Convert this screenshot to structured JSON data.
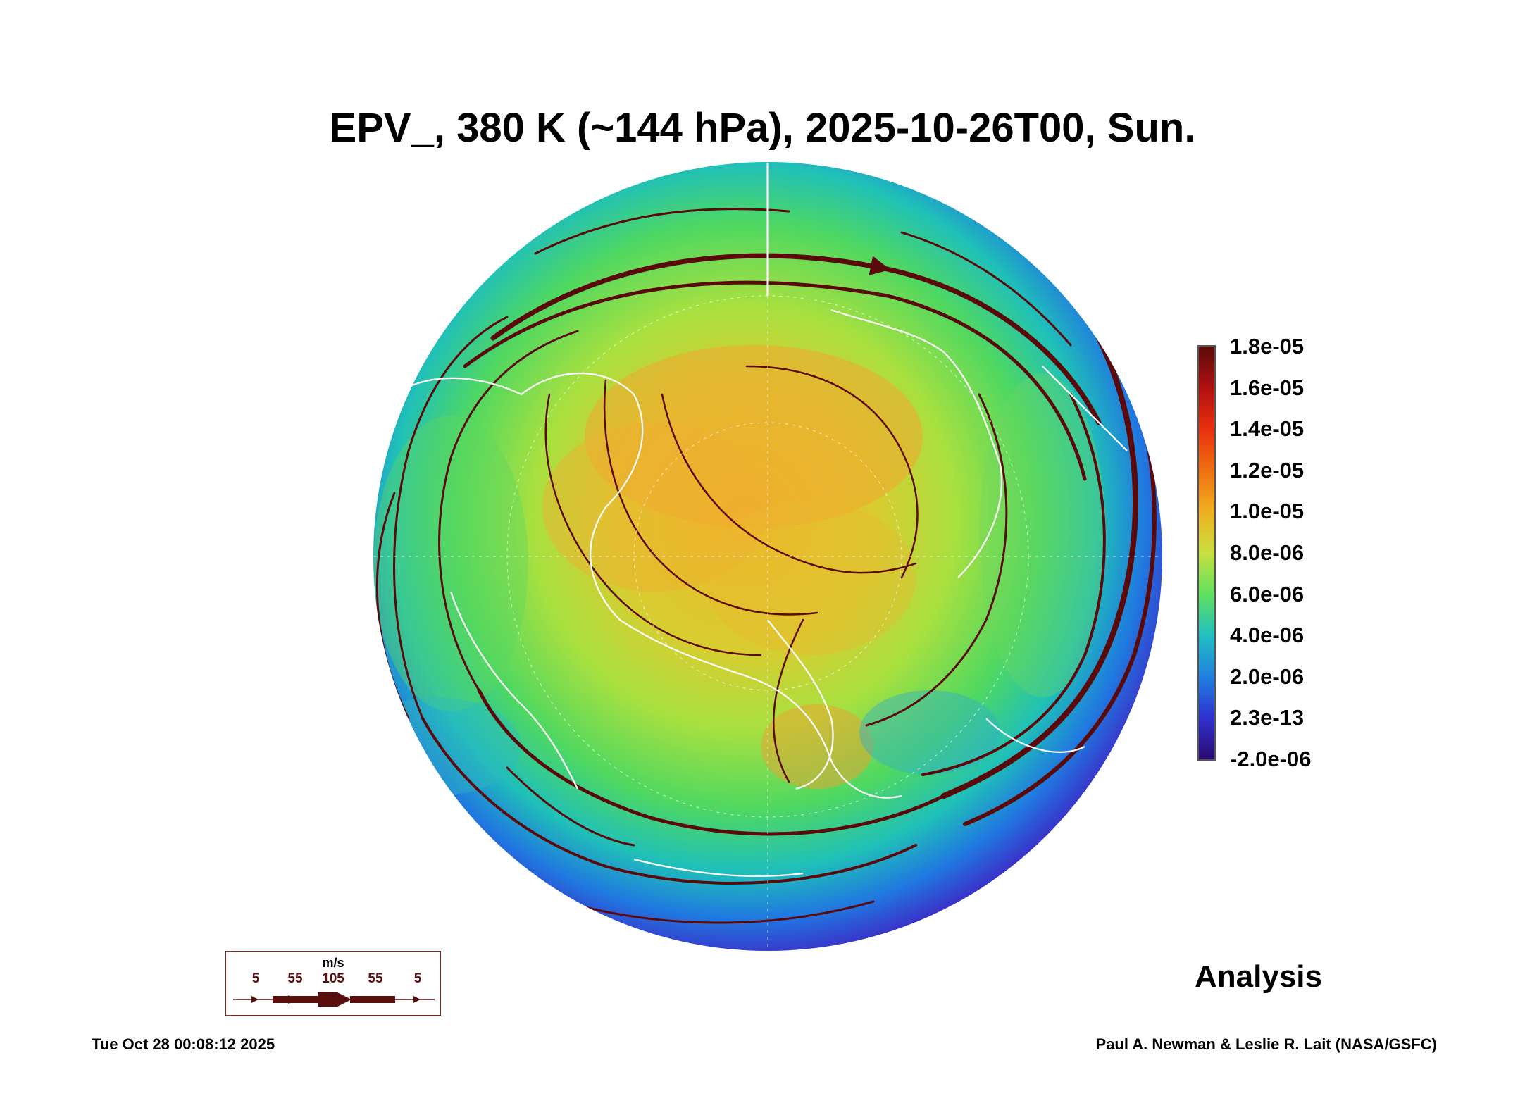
{
  "title": "EPV_, 380 K (~144 hPa), 2025-10-26T00, Sun.",
  "colorbar": {
    "labels": [
      "1.8e-05",
      "1.6e-05",
      "1.4e-05",
      "1.2e-05",
      "1.0e-05",
      "8.0e-06",
      "6.0e-06",
      "4.0e-06",
      "2.0e-06",
      "2.3e-13",
      "-2.0e-06"
    ],
    "colors": [
      "#5a0a0a",
      "#b01010",
      "#e83010",
      "#f07010",
      "#f0b020",
      "#c8e040",
      "#60e060",
      "#20c0c0",
      "#2080e0",
      "#3030d0",
      "#2a0a70"
    ]
  },
  "legend": {
    "unit": "m/s",
    "speeds": [
      "5",
      "55",
      "105",
      "55",
      "5"
    ],
    "color": "#5a0f0f"
  },
  "label_analysis": "Analysis",
  "timestamp": "Tue Oct 28 00:08:12 2025",
  "credit": "Paul A. Newman & Leslie R. Lait (NASA/GSFC)",
  "map": {
    "projection": "north polar orthographic",
    "coastline_color": "#ffffff",
    "streamline_color": "#5a0a0a"
  }
}
